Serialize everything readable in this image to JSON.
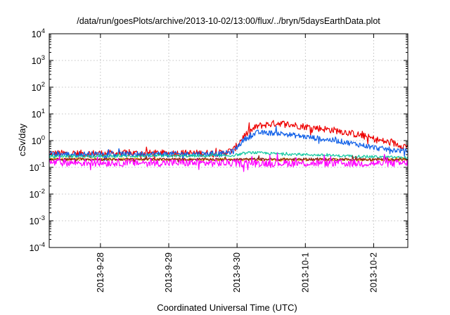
{
  "chart_data": {
    "type": "line",
    "title": "/data/run/goesPlots/archive/2013-10-02/13:00/flux/../bryn/5daysEarthData.plot",
    "xlabel": "Coordinated Universal Time (UTC)",
    "ylabel": "cSv/day",
    "yscale": "log",
    "ylim": [
      0.0001,
      10000
    ],
    "xlim": [
      -2.75,
      2.5
    ],
    "x_unit": "days relative to 2013-9-30 00:00 UTC",
    "xticks": [
      {
        "x": -2,
        "label": "2013-9-28"
      },
      {
        "x": -1,
        "label": "2013-9-29"
      },
      {
        "x": 0,
        "label": "2013-9-30"
      },
      {
        "x": 1,
        "label": "2013-10-1"
      },
      {
        "x": 2,
        "label": "2013-10-2"
      }
    ],
    "yticks": [
      {
        "exp": "-4",
        "value": 0.0001
      },
      {
        "exp": "-3",
        "value": 0.001
      },
      {
        "exp": "-2",
        "value": 0.01
      },
      {
        "exp": "-1",
        "value": 0.1
      },
      {
        "exp": "0",
        "value": 1
      },
      {
        "exp": "1",
        "value": 10
      },
      {
        "exp": "2",
        "value": 100
      },
      {
        "exp": "3",
        "value": 1000
      },
      {
        "exp": "4",
        "value": 10000
      }
    ],
    "tick_base": "10",
    "grid": true,
    "series": [
      {
        "color": "#ee0000",
        "noise": 0.13,
        "x": [
          -2.75,
          -0.2,
          -0.05,
          0.1,
          0.3,
          0.6,
          0.9,
          1.2,
          1.5,
          1.8,
          2.1,
          2.5
        ],
        "values": [
          0.33,
          0.34,
          0.45,
          1.5,
          3.5,
          4.6,
          3.6,
          2.9,
          2.3,
          1.6,
          1.0,
          0.6
        ]
      },
      {
        "color": "#1060e8",
        "noise": 0.1,
        "x": [
          -2.75,
          -0.2,
          -0.05,
          0.1,
          0.3,
          0.6,
          0.9,
          1.2,
          1.5,
          1.8,
          2.1,
          2.5
        ],
        "values": [
          0.31,
          0.32,
          0.4,
          1.1,
          2.0,
          1.9,
          1.5,
          1.2,
          0.95,
          0.7,
          0.5,
          0.4
        ]
      },
      {
        "color": "#10c8a0",
        "noise": 0.05,
        "x": [
          -2.75,
          -0.1,
          0.2,
          0.5,
          1.0,
          1.5,
          2.0,
          2.5
        ],
        "values": [
          0.26,
          0.27,
          0.36,
          0.33,
          0.3,
          0.27,
          0.25,
          0.23
        ]
      },
      {
        "color": "#d4a000",
        "noise": 0.05,
        "x": [
          -2.75,
          2.5
        ],
        "values": [
          0.2,
          0.19
        ]
      },
      {
        "color": "#8b1a1a",
        "noise": 0.05,
        "x": [
          -2.75,
          2.5
        ],
        "values": [
          0.2,
          0.2
        ]
      },
      {
        "color": "#ff00ff",
        "noise": 0.14,
        "x": [
          -2.75,
          2.5
        ],
        "values": [
          0.15,
          0.14
        ]
      }
    ]
  }
}
